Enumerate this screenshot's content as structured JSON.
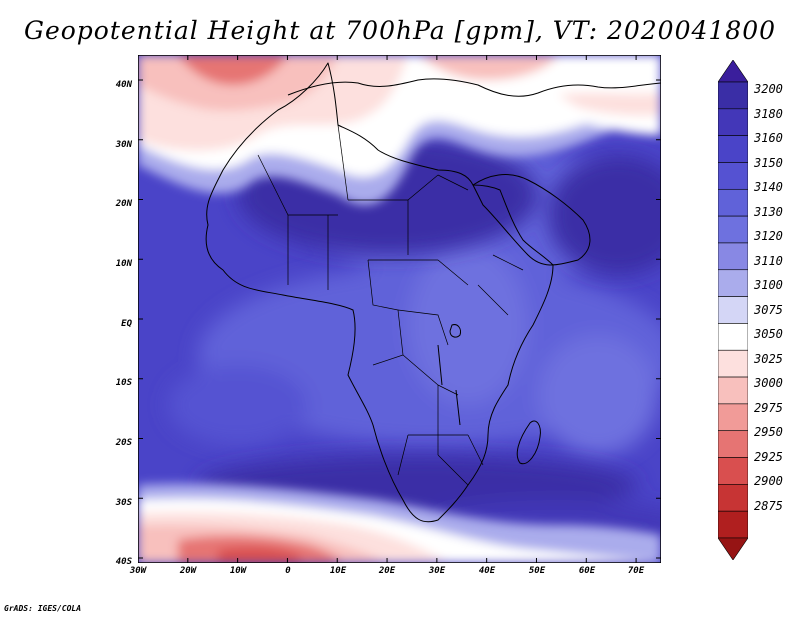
{
  "title": "Geopotential Height at 700hPa [gpm], VT: 2020041800",
  "credit": "GrADS: IGES/COLA",
  "map": {
    "projection": "latlon",
    "lon_range": [
      -30,
      75
    ],
    "lat_range": [
      -40,
      45
    ],
    "lat_ticks": [
      "40N",
      "30N",
      "20N",
      "10N",
      "EQ",
      "10S",
      "20S",
      "30S",
      "40S"
    ],
    "lon_ticks": [
      "30W",
      "20W",
      "10W",
      "0",
      "10E",
      "20E",
      "30E",
      "40E",
      "50E",
      "60E",
      "70E"
    ],
    "field": "geopotential height 700hPa",
    "units": "gpm"
  },
  "colorbar": {
    "levels": [
      "3200",
      "3180",
      "3160",
      "3150",
      "3140",
      "3130",
      "3120",
      "3110",
      "3100",
      "3075",
      "3050",
      "3025",
      "3000",
      "2975",
      "2950",
      "2925",
      "2900",
      "2875"
    ],
    "colors": [
      "#3a1e9c",
      "#3a2ea6",
      "#4337b8",
      "#4a44c8",
      "#5552d2",
      "#6062d9",
      "#6e71df",
      "#8888e4",
      "#aaacec",
      "#d4d6f6",
      "#ffffff",
      "#fde0de",
      "#f8c0bd",
      "#f19b98",
      "#e67473",
      "#d94f4f",
      "#c73434",
      "#b01f1f",
      "#961414"
    ]
  }
}
